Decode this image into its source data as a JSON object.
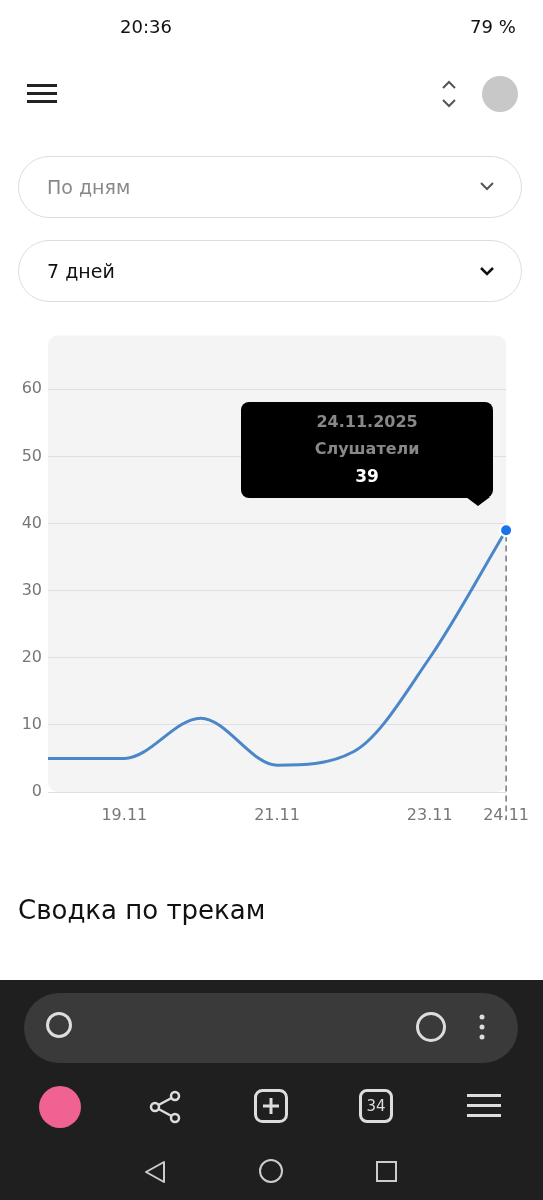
{
  "chart_data": {
    "type": "line",
    "categories": [
      null,
      "19.11",
      null,
      "21.11",
      null,
      "23.11",
      "24.11"
    ],
    "series": [
      {
        "name": "Слушатели",
        "color": "#4a86c8",
        "values": [
          5,
          5,
          11,
          4,
          6,
          20,
          39
        ]
      }
    ],
    "ylim": [
      0,
      68
    ],
    "yticks": [
      0,
      10,
      20,
      30,
      40,
      50,
      60
    ],
    "grid": "y",
    "legend": false,
    "marker": "none",
    "line_style": "solid",
    "ref_lines": [
      {
        "axis": "x",
        "value": "24.11",
        "line_style": "dashed",
        "color": "#555555"
      }
    ],
    "annotations": [
      "24.11.2025",
      "39",
      "20:36",
      "79 %",
      "По дням",
      "7 дней",
      "Сводка по трекам",
      "34"
    ]
  }
}
